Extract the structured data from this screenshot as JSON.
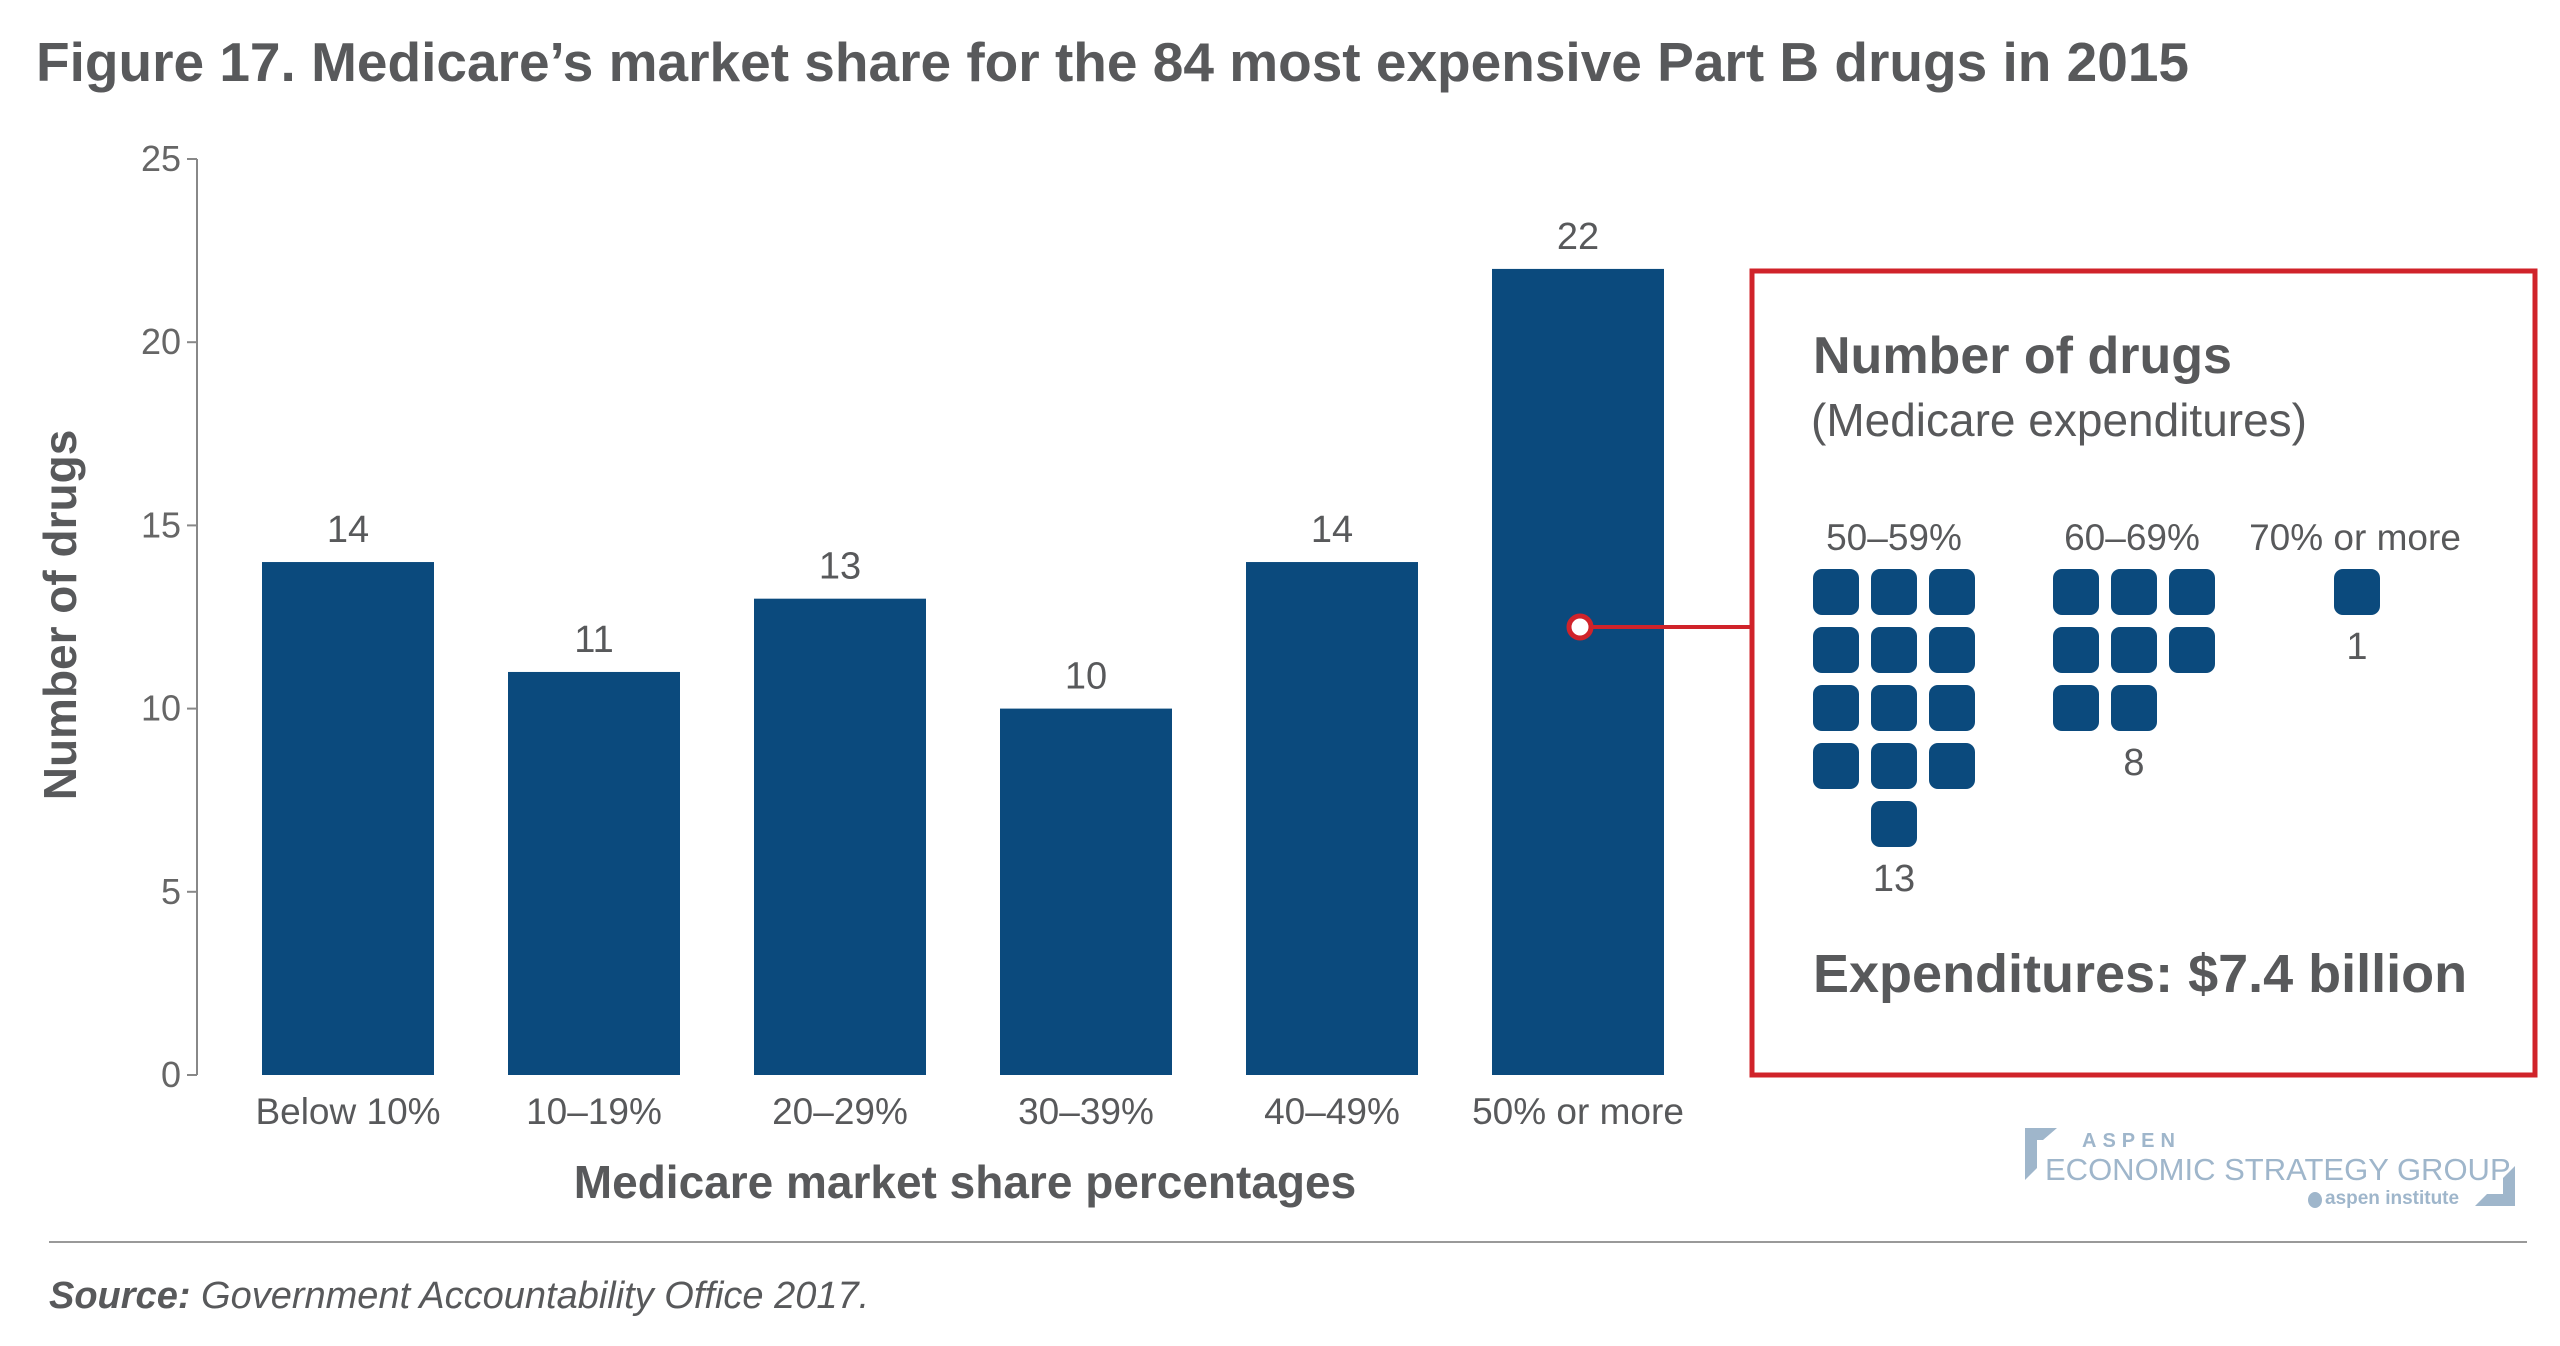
{
  "title": "Figure 17. Medicare’s market share for the 84 most expensive Part B drugs in 2015",
  "chart_data": {
    "type": "bar",
    "title": "Figure 17. Medicare’s market share for the 84 most expensive Part B drugs in 2015",
    "xlabel": "Medicare market share percentages",
    "ylabel": "Number of drugs",
    "categories": [
      "Below 10%",
      "10–19%",
      "20–29%",
      "30–39%",
      "40–49%",
      "50% or more"
    ],
    "values": [
      14,
      11,
      13,
      10,
      14,
      22
    ],
    "ylim": [
      0,
      25
    ],
    "yticks": [
      0,
      5,
      10,
      15,
      20,
      25
    ],
    "grid": false,
    "bar_color": "#0b4a7d",
    "callout": {
      "title": "Number of drugs",
      "subtitle": "(Medicare expenditures)",
      "groups": [
        {
          "label": "50–59%",
          "count": 13,
          "count_label": "13"
        },
        {
          "label": "60–69%",
          "count": 8,
          "count_label": "8"
        },
        {
          "label": "70% or more",
          "count": 1,
          "count_label": "1"
        }
      ],
      "expenditures": "Expenditures: $7.4 billion",
      "border_color": "#d0232a"
    }
  },
  "source_label": "Source:",
  "source_text": " Government Accountability Office 2017.",
  "logo": {
    "line1": "ASPEN",
    "line2": "ECONOMIC STRATEGY GROUP",
    "line3": "aspen institute"
  }
}
